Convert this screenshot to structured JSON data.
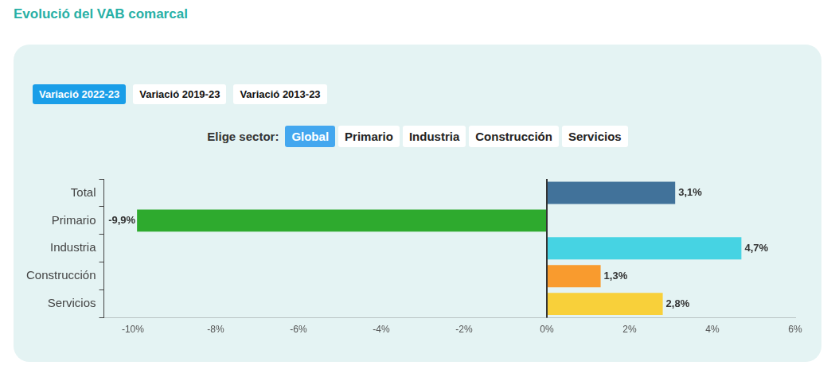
{
  "chart_data": {
    "type": "bar",
    "orientation": "horizontal",
    "title": "Evolució del VAB comarcal",
    "categories": [
      "Total",
      "Primario",
      "Industria",
      "Construcción",
      "Servicios"
    ],
    "values": [
      3.1,
      -9.9,
      4.7,
      1.3,
      2.8
    ],
    "value_labels": [
      "3,1%",
      "-9,9%",
      "4,7%",
      "1,3%",
      "2,8%"
    ],
    "colors": [
      "#41729a",
      "#2eaa2e",
      "#46d3e3",
      "#f99b2e",
      "#f8d03a"
    ],
    "xlim": [
      -10.7,
      6
    ],
    "xticks": [
      {
        "value": -10,
        "label": "-10%"
      },
      {
        "value": -8,
        "label": "-8%"
      },
      {
        "value": -6,
        "label": "-6%"
      },
      {
        "value": -4,
        "label": "-4%"
      },
      {
        "value": -2,
        "label": "-2%"
      },
      {
        "value": 0,
        "label": "0%"
      },
      {
        "value": 2,
        "label": "2%"
      },
      {
        "value": 4,
        "label": "4%"
      },
      {
        "value": 6,
        "label": "6%"
      }
    ],
    "grid": false,
    "data_labels": true
  },
  "controls": {
    "periods": [
      "Variació 2022-23",
      "Variació 2019-23",
      "Variació 2013-23"
    ],
    "active_period": "Variació 2022-23",
    "sector_label": "Elige sector:",
    "sectors": [
      "Global",
      "Primario",
      "Industria",
      "Construcción",
      "Servicios"
    ],
    "active_sector": "Global"
  }
}
